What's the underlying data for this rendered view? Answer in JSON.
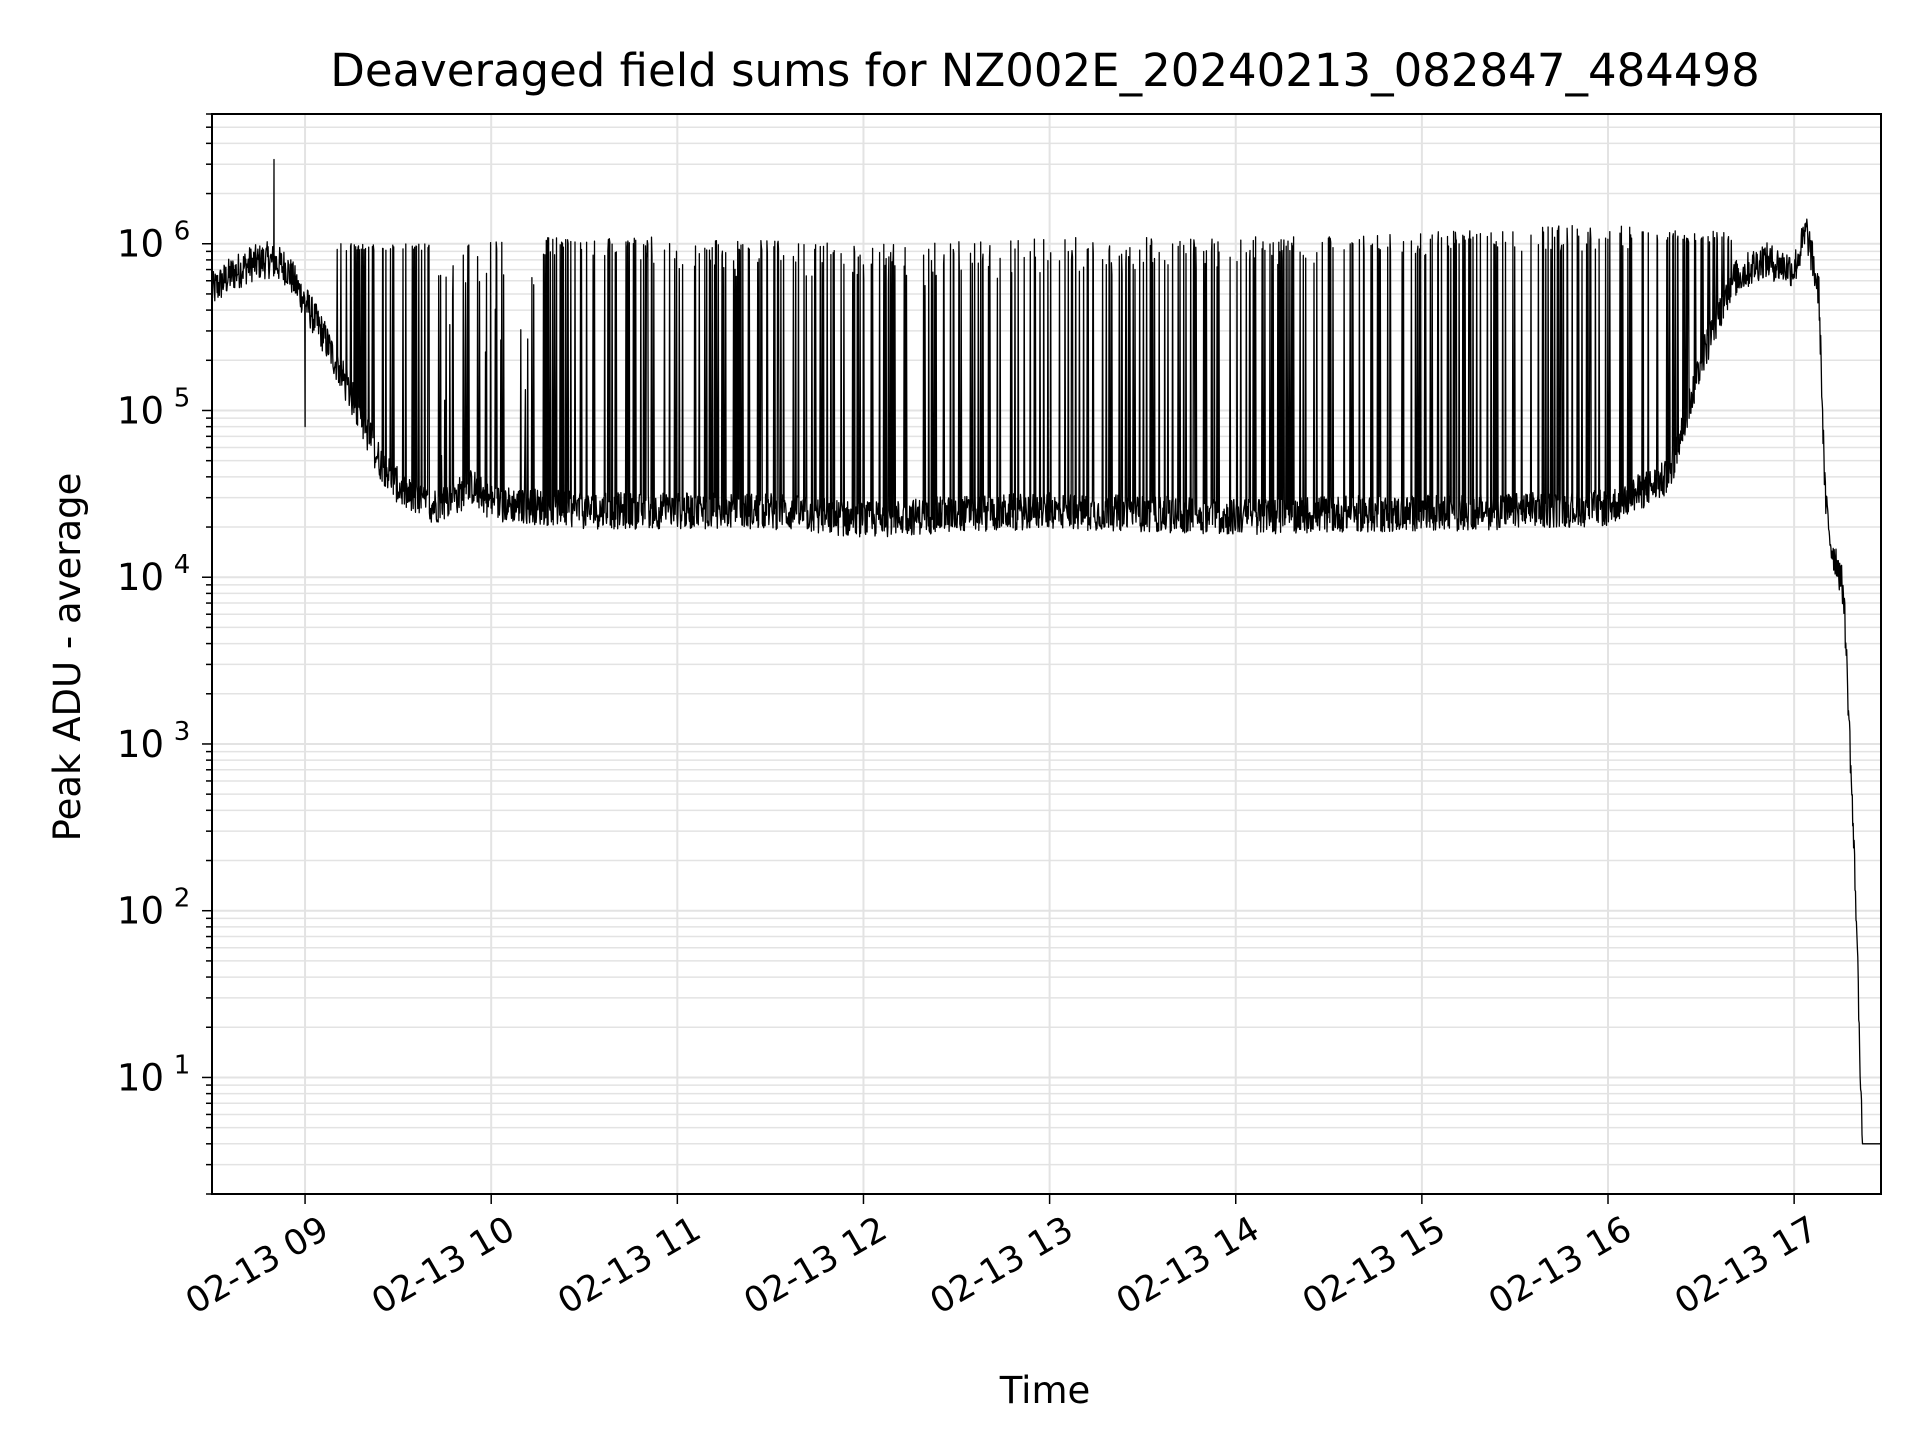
{
  "chart_data": {
    "type": "line",
    "title": "Deaveraged field sums for NZ002E_20240213_082847_484498",
    "xlabel": "Time",
    "ylabel": "Peak ADU - average",
    "yscale": "log",
    "ylim": [
      2,
      6000000
    ],
    "xlim": [
      "2024-02-13 08:30",
      "2024-02-13 17:28"
    ],
    "grid": true,
    "line_color": "#000000",
    "x_ticks": [
      "02-13 09",
      "02-13 10",
      "02-13 11",
      "02-13 12",
      "02-13 13",
      "02-13 14",
      "02-13 15",
      "02-13 16",
      "02-13 17"
    ],
    "y_ticks": [
      {
        "base": "10",
        "exp": "1",
        "value": 10
      },
      {
        "base": "10",
        "exp": "2",
        "value": 100
      },
      {
        "base": "10",
        "exp": "3",
        "value": 1000
      },
      {
        "base": "10",
        "exp": "4",
        "value": 10000
      },
      {
        "base": "10",
        "exp": "5",
        "value": 100000
      },
      {
        "base": "10",
        "exp": "6",
        "value": 1000000
      }
    ],
    "series": [
      {
        "x": [
          "2024-02-13 08:30",
          "2024-02-13 08:36",
          "2024-02-13 08:42",
          "2024-02-13 08:48",
          "2024-02-13 08:54",
          "2024-02-13 09:00",
          "2024-02-13 09:06",
          "2024-02-13 09:12",
          "2024-02-13 09:18",
          "2024-02-13 09:24",
          "2024-02-13 09:30",
          "2024-02-13 09:36",
          "2024-02-13 09:42",
          "2024-02-13 09:48",
          "2024-02-13 09:54",
          "2024-02-13 10:00",
          "2024-02-13 10:30",
          "2024-02-13 11:00",
          "2024-02-13 11:30",
          "2024-02-13 12:00",
          "2024-02-13 12:30",
          "2024-02-13 13:00",
          "2024-02-13 13:30",
          "2024-02-13 14:00",
          "2024-02-13 14:30",
          "2024-02-13 15:00",
          "2024-02-13 15:30",
          "2024-02-13 16:00",
          "2024-02-13 16:20",
          "2024-02-13 16:30",
          "2024-02-13 16:40",
          "2024-02-13 16:50",
          "2024-02-13 17:00",
          "2024-02-13 17:04",
          "2024-02-13 17:08",
          "2024-02-13 17:10",
          "2024-02-13 17:12",
          "2024-02-13 17:14",
          "2024-02-13 17:16",
          "2024-02-13 17:18",
          "2024-02-13 17:20",
          "2024-02-13 17:22",
          "2024-02-13 17:23",
          "2024-02-13 17:25",
          "2024-02-13 17:28"
        ],
        "y": [
          520000,
          650000,
          750000,
          800000,
          720000,
          450000,
          280000,
          160000,
          90000,
          50000,
          35000,
          28000,
          27000,
          30000,
          35000,
          28000,
          25000,
          25000,
          25000,
          22000,
          24000,
          25000,
          24000,
          23000,
          24000,
          24000,
          25000,
          26000,
          40000,
          200000,
          600000,
          800000,
          700000,
          1200000,
          500000,
          30000,
          15000,
          12000,
          8000,
          1000,
          100,
          4,
          4,
          4,
          4
        ],
        "spikes": {
          "min": [
            0.9,
            0.0,
            0.85,
            0.7,
            0.6,
            0.55,
            0.6,
            0.65,
            0.7,
            0.75,
            0.85,
            0.9,
            0.9,
            1.0
          ],
          "max": [
            1.0,
            1.1,
            1.1,
            1.1,
            1.05,
            1.0,
            1.05,
            1.1,
            1.1,
            1.1,
            1.15,
            1.2,
            1.3,
            1.2
          ]
        }
      }
    ]
  }
}
